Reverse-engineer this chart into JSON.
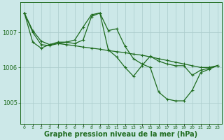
{
  "background_color": "#cce8e8",
  "plot_bg_color": "#cce8e8",
  "grid_color": "#aacccc",
  "line_color": "#1e6b1e",
  "xlabel": "Graphe pression niveau de la mer (hPa)",
  "xlabel_fontsize": 7,
  "yticks": [
    1005,
    1006,
    1007
  ],
  "xlim": [
    -0.5,
    23.5
  ],
  "ylim": [
    1004.4,
    1007.85
  ],
  "series1_x": [
    0,
    1,
    2,
    3,
    4,
    5,
    6,
    7,
    8,
    9,
    10,
    11,
    12,
    13,
    14,
    15,
    16,
    17,
    18,
    19,
    20,
    21,
    22,
    23
  ],
  "series1_y": [
    1007.55,
    1007.05,
    1006.75,
    1006.65,
    1006.68,
    1006.65,
    1006.62,
    1006.58,
    1006.55,
    1006.52,
    1006.48,
    1006.45,
    1006.42,
    1006.38,
    1006.35,
    1006.3,
    1006.25,
    1006.2,
    1006.15,
    1006.1,
    1006.05,
    1006.0,
    1006.0,
    1006.05
  ],
  "series2_x": [
    0,
    1,
    2,
    3,
    4,
    5,
    6,
    7,
    8,
    9,
    10,
    11,
    12,
    13,
    14,
    15,
    16,
    17,
    18,
    19,
    20,
    21,
    22,
    23
  ],
  "series2_y": [
    1007.55,
    1007.0,
    1006.65,
    1006.62,
    1006.68,
    1006.72,
    1006.78,
    1007.15,
    1007.5,
    1007.55,
    1007.05,
    1007.1,
    1006.6,
    1006.25,
    1006.1,
    1006.0,
    1005.3,
    1005.1,
    1005.05,
    1005.05,
    1005.35,
    1005.85,
    1005.95,
    1006.05
  ],
  "series3_x": [
    0,
    1,
    2,
    3,
    4,
    5,
    6,
    7,
    8,
    9,
    10,
    11,
    12,
    13,
    14,
    15,
    16,
    17,
    18,
    19,
    20,
    21,
    22,
    23
  ],
  "series3_y": [
    1007.55,
    1006.72,
    1006.55,
    1006.65,
    1006.72,
    1006.72,
    1006.68,
    1006.78,
    1007.45,
    1007.55,
    1006.5,
    1006.3,
    1006.0,
    1005.75,
    1006.05,
    1006.32,
    1006.18,
    1006.1,
    1006.05,
    1006.05,
    1005.78,
    1005.92,
    1005.98,
    1006.05
  ]
}
